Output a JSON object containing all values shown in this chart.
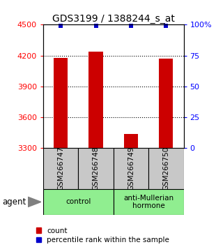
{
  "title": "GDS3199 / 1388244_s_at",
  "samples": [
    "GSM266747",
    "GSM266748",
    "GSM266749",
    "GSM266750"
  ],
  "counts": [
    4180,
    4240,
    3440,
    4170
  ],
  "percentiles": [
    99,
    99,
    99,
    99
  ],
  "ylim_left": [
    3300,
    4500
  ],
  "ylim_right": [
    0,
    100
  ],
  "yticks_left": [
    3300,
    3600,
    3900,
    4200,
    4500
  ],
  "yticks_right": [
    0,
    25,
    50,
    75,
    100
  ],
  "bar_color": "#cc0000",
  "percentile_color": "#0000cc",
  "bar_width": 0.4,
  "groups": [
    {
      "label": "control",
      "samples": [
        0,
        1
      ],
      "color": "#90ee90"
    },
    {
      "label": "anti-Mullerian\nhormone",
      "samples": [
        2,
        3
      ],
      "color": "#90ee90"
    }
  ],
  "agent_label": "agent",
  "legend_count_label": "count",
  "legend_percentile_label": "percentile rank within the sample",
  "background_color": "#ffffff",
  "plot_bg_color": "#ffffff",
  "gray_color": "#c8c8c8",
  "title_fontsize": 10,
  "tick_fontsize": 8,
  "label_fontsize": 7.5,
  "legend_fontsize": 7.5
}
